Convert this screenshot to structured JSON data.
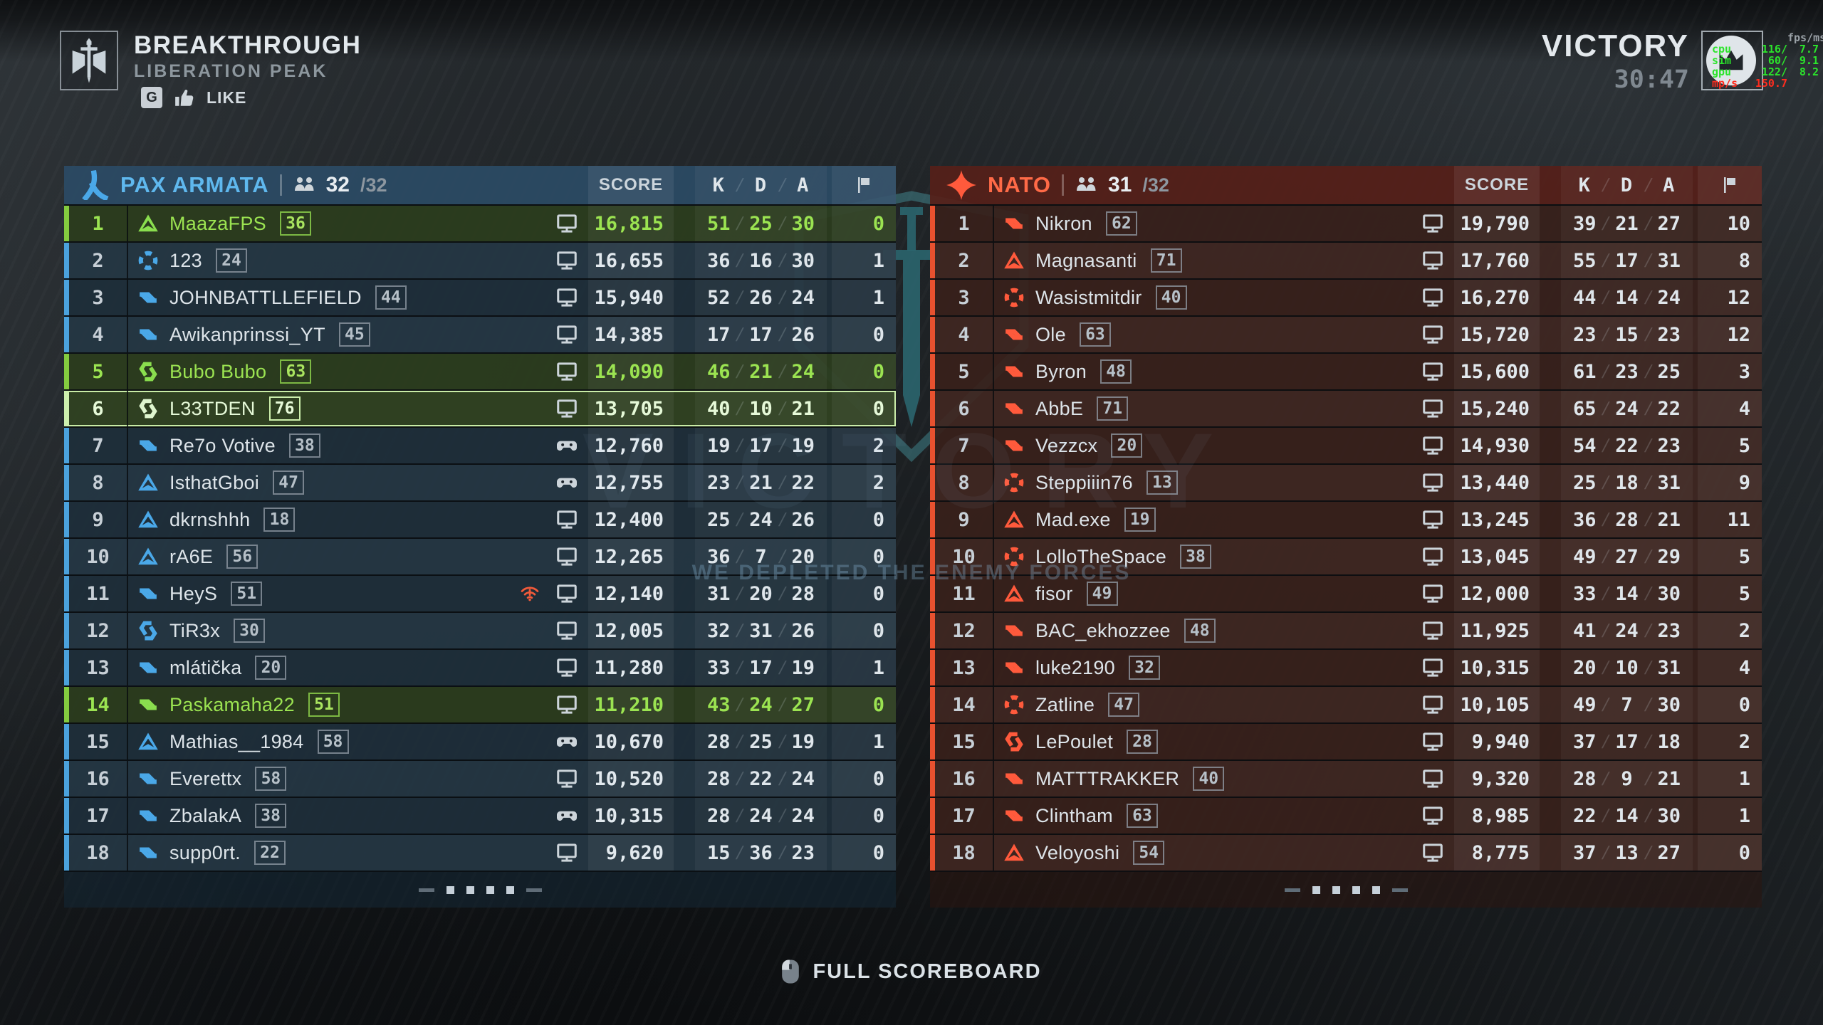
{
  "match": {
    "mode": "BREAKTHROUGH",
    "map": "LIBERATION PEAK",
    "like_key": "G",
    "like_label": "LIKE",
    "result": "VICTORY",
    "time": "30:47",
    "watermark_big": "VICTORY",
    "watermark_message": "WE DEPLETED THE ENEMY FORCES",
    "footer_hint": "FULL SCOREBOARD"
  },
  "perf_overlay": {
    "header": "fps/ms",
    "lines": [
      {
        "label": "cpu",
        "fps": "116/",
        "ms": "7.7",
        "color": "green"
      },
      {
        "label": "sim",
        "fps": "60/",
        "ms": "9.1",
        "color": "green"
      },
      {
        "label": "gpu",
        "fps": "122/",
        "ms": "8.2",
        "color": "green"
      },
      {
        "label": "mp/s",
        "fps": "150.7",
        "ms": "",
        "color": "red"
      }
    ]
  },
  "columns": {
    "score": "SCORE",
    "k": "K",
    "d": "D",
    "a": "A"
  },
  "colors": {
    "team_left_accent": "#5fb8ee",
    "team_right_accent": "#ff6a47",
    "squad_green": "#9be351",
    "self_pale_green": "#e6f9d8",
    "net_warning": "#f25a3a"
  },
  "teams": [
    {
      "name": "PAX ARMATA",
      "faction_icon": "pax-armata-icon",
      "player_count": "32",
      "max_count": "/32",
      "rows": [
        {
          "rank": "1",
          "squad_icon": "triangle",
          "name": "MaazaFPS",
          "level": "36",
          "platform": "pc",
          "net_warning": false,
          "score": "16,815",
          "k": "51",
          "d": "25",
          "a": "30",
          "flags": "0",
          "state": "squad"
        },
        {
          "rank": "2",
          "squad_icon": "brackets",
          "name": "123",
          "level": "24",
          "platform": "pc",
          "net_warning": false,
          "score": "16,655",
          "k": "36",
          "d": "16",
          "a": "30",
          "flags": "1",
          "state": ""
        },
        {
          "rank": "3",
          "squad_icon": "chevrons",
          "name": "JOHNBATTLLEFIELD",
          "level": "44",
          "platform": "pc",
          "net_warning": false,
          "score": "15,940",
          "k": "52",
          "d": "26",
          "a": "24",
          "flags": "1",
          "state": ""
        },
        {
          "rank": "4",
          "squad_icon": "chevrons",
          "name": "Awikanprinssi_YT",
          "level": "45",
          "platform": "pc",
          "net_warning": false,
          "score": "14,385",
          "k": "17",
          "d": "17",
          "a": "26",
          "flags": "0",
          "state": ""
        },
        {
          "rank": "5",
          "squad_icon": "hooks",
          "name": "Bubo Bubo",
          "level": "63",
          "platform": "pc",
          "net_warning": false,
          "score": "14,090",
          "k": "46",
          "d": "21",
          "a": "24",
          "flags": "0",
          "state": "squad"
        },
        {
          "rank": "6",
          "squad_icon": "hooks",
          "name": "L33TDEN",
          "level": "76",
          "platform": "pc",
          "net_warning": false,
          "score": "13,705",
          "k": "40",
          "d": "10",
          "a": "21",
          "flags": "0",
          "state": "self"
        },
        {
          "rank": "7",
          "squad_icon": "chevrons",
          "name": "Re7o Votive",
          "level": "38",
          "platform": "console",
          "net_warning": false,
          "score": "12,760",
          "k": "19",
          "d": "17",
          "a": "19",
          "flags": "2",
          "state": ""
        },
        {
          "rank": "8",
          "squad_icon": "triangle",
          "name": "IsthatGboi",
          "level": "47",
          "platform": "console",
          "net_warning": false,
          "score": "12,755",
          "k": "23",
          "d": "21",
          "a": "22",
          "flags": "2",
          "state": ""
        },
        {
          "rank": "9",
          "squad_icon": "triangle",
          "name": "dkrnshhh",
          "level": "18",
          "platform": "pc",
          "net_warning": false,
          "score": "12,400",
          "k": "25",
          "d": "24",
          "a": "26",
          "flags": "0",
          "state": ""
        },
        {
          "rank": "10",
          "squad_icon": "triangle",
          "name": "rA6E",
          "level": "56",
          "platform": "pc",
          "net_warning": false,
          "score": "12,265",
          "k": "36",
          "d": "7",
          "a": "20",
          "flags": "0",
          "state": ""
        },
        {
          "rank": "11",
          "squad_icon": "chevrons",
          "name": "HeyS",
          "level": "51",
          "platform": "pc",
          "net_warning": true,
          "score": "12,140",
          "k": "31",
          "d": "20",
          "a": "28",
          "flags": "0",
          "state": ""
        },
        {
          "rank": "12",
          "squad_icon": "hooks",
          "name": "TiR3x",
          "level": "30",
          "platform": "pc",
          "net_warning": false,
          "score": "12,005",
          "k": "32",
          "d": "31",
          "a": "26",
          "flags": "0",
          "state": ""
        },
        {
          "rank": "13",
          "squad_icon": "chevrons",
          "name": "mlátička",
          "level": "20",
          "platform": "pc",
          "net_warning": false,
          "score": "11,280",
          "k": "33",
          "d": "17",
          "a": "19",
          "flags": "1",
          "state": ""
        },
        {
          "rank": "14",
          "squad_icon": "chevrons",
          "name": "Paskamaha22",
          "level": "51",
          "platform": "pc",
          "net_warning": false,
          "score": "11,210",
          "k": "43",
          "d": "24",
          "a": "27",
          "flags": "0",
          "state": "squad"
        },
        {
          "rank": "15",
          "squad_icon": "triangle",
          "name": "Mathias__1984",
          "level": "58",
          "platform": "console",
          "net_warning": false,
          "score": "10,670",
          "k": "28",
          "d": "25",
          "a": "19",
          "flags": "1",
          "state": ""
        },
        {
          "rank": "16",
          "squad_icon": "chevrons",
          "name": "Everettx",
          "level": "58",
          "platform": "pc",
          "net_warning": false,
          "score": "10,520",
          "k": "28",
          "d": "22",
          "a": "24",
          "flags": "0",
          "state": ""
        },
        {
          "rank": "17",
          "squad_icon": "chevrons",
          "name": "ZbalakA",
          "level": "38",
          "platform": "console",
          "net_warning": false,
          "score": "10,315",
          "k": "28",
          "d": "24",
          "a": "24",
          "flags": "0",
          "state": ""
        },
        {
          "rank": "18",
          "squad_icon": "chevrons",
          "name": "supp0rt.",
          "level": "22",
          "platform": "pc",
          "net_warning": false,
          "score": "9,620",
          "k": "15",
          "d": "36",
          "a": "23",
          "flags": "0",
          "state": ""
        }
      ]
    },
    {
      "name": "NATO",
      "faction_icon": "nato-star-icon",
      "player_count": "31",
      "max_count": "/32",
      "rows": [
        {
          "rank": "1",
          "squad_icon": "chevrons",
          "name": "Nikron",
          "level": "62",
          "platform": "pc",
          "net_warning": false,
          "score": "19,790",
          "k": "39",
          "d": "21",
          "a": "27",
          "flags": "10",
          "state": ""
        },
        {
          "rank": "2",
          "squad_icon": "triangle",
          "name": "Magnasanti",
          "level": "71",
          "platform": "pc",
          "net_warning": false,
          "score": "17,760",
          "k": "55",
          "d": "17",
          "a": "31",
          "flags": "8",
          "state": ""
        },
        {
          "rank": "3",
          "squad_icon": "brackets",
          "name": "Wasistmitdir",
          "level": "40",
          "platform": "pc",
          "net_warning": false,
          "score": "16,270",
          "k": "44",
          "d": "14",
          "a": "24",
          "flags": "12",
          "state": ""
        },
        {
          "rank": "4",
          "squad_icon": "chevrons",
          "name": "Ole",
          "level": "63",
          "platform": "pc",
          "net_warning": false,
          "score": "15,720",
          "k": "23",
          "d": "15",
          "a": "23",
          "flags": "12",
          "state": ""
        },
        {
          "rank": "5",
          "squad_icon": "chevrons",
          "name": "Byron",
          "level": "48",
          "platform": "pc",
          "net_warning": false,
          "score": "15,600",
          "k": "61",
          "d": "23",
          "a": "25",
          "flags": "3",
          "state": ""
        },
        {
          "rank": "6",
          "squad_icon": "chevrons",
          "name": "AbbE",
          "level": "71",
          "platform": "pc",
          "net_warning": false,
          "score": "15,240",
          "k": "65",
          "d": "24",
          "a": "22",
          "flags": "4",
          "state": ""
        },
        {
          "rank": "7",
          "squad_icon": "chevrons",
          "name": "Vezzcx",
          "level": "20",
          "platform": "pc",
          "net_warning": false,
          "score": "14,930",
          "k": "54",
          "d": "22",
          "a": "23",
          "flags": "5",
          "state": ""
        },
        {
          "rank": "8",
          "squad_icon": "brackets",
          "name": "Steppiiin76",
          "level": "13",
          "platform": "pc",
          "net_warning": false,
          "score": "13,440",
          "k": "25",
          "d": "18",
          "a": "31",
          "flags": "9",
          "state": ""
        },
        {
          "rank": "9",
          "squad_icon": "triangle",
          "name": "Mad.exe",
          "level": "19",
          "platform": "pc",
          "net_warning": false,
          "score": "13,245",
          "k": "36",
          "d": "28",
          "a": "21",
          "flags": "11",
          "state": ""
        },
        {
          "rank": "10",
          "squad_icon": "brackets",
          "name": "LolloTheSpace",
          "level": "38",
          "platform": "pc",
          "net_warning": false,
          "score": "13,045",
          "k": "49",
          "d": "27",
          "a": "29",
          "flags": "5",
          "state": ""
        },
        {
          "rank": "11",
          "squad_icon": "triangle",
          "name": "fisor",
          "level": "49",
          "platform": "pc",
          "net_warning": false,
          "score": "12,000",
          "k": "33",
          "d": "14",
          "a": "30",
          "flags": "5",
          "state": ""
        },
        {
          "rank": "12",
          "squad_icon": "chevrons",
          "name": "BAC_ekhozzee",
          "level": "48",
          "platform": "pc",
          "net_warning": false,
          "score": "11,925",
          "k": "41",
          "d": "24",
          "a": "23",
          "flags": "2",
          "state": ""
        },
        {
          "rank": "13",
          "squad_icon": "chevrons",
          "name": "luke2190",
          "level": "32",
          "platform": "pc",
          "net_warning": false,
          "score": "10,315",
          "k": "20",
          "d": "10",
          "a": "31",
          "flags": "4",
          "state": ""
        },
        {
          "rank": "14",
          "squad_icon": "brackets",
          "name": "Zatline",
          "level": "47",
          "platform": "pc",
          "net_warning": false,
          "score": "10,105",
          "k": "49",
          "d": "7",
          "a": "30",
          "flags": "0",
          "state": ""
        },
        {
          "rank": "15",
          "squad_icon": "hooks",
          "name": "LePoulet",
          "level": "28",
          "platform": "pc",
          "net_warning": false,
          "score": "9,940",
          "k": "37",
          "d": "17",
          "a": "18",
          "flags": "2",
          "state": ""
        },
        {
          "rank": "16",
          "squad_icon": "chevrons",
          "name": "MATTTRAKKER",
          "level": "40",
          "platform": "pc",
          "net_warning": false,
          "score": "9,320",
          "k": "28",
          "d": "9",
          "a": "21",
          "flags": "1",
          "state": ""
        },
        {
          "rank": "17",
          "squad_icon": "chevrons",
          "name": "Clintham",
          "level": "63",
          "platform": "pc",
          "net_warning": false,
          "score": "8,985",
          "k": "22",
          "d": "14",
          "a": "30",
          "flags": "1",
          "state": ""
        },
        {
          "rank": "18",
          "squad_icon": "triangle",
          "name": "Veloyoshi",
          "level": "54",
          "platform": "pc",
          "net_warning": false,
          "score": "8,775",
          "k": "37",
          "d": "13",
          "a": "27",
          "flags": "0",
          "state": ""
        }
      ]
    }
  ]
}
